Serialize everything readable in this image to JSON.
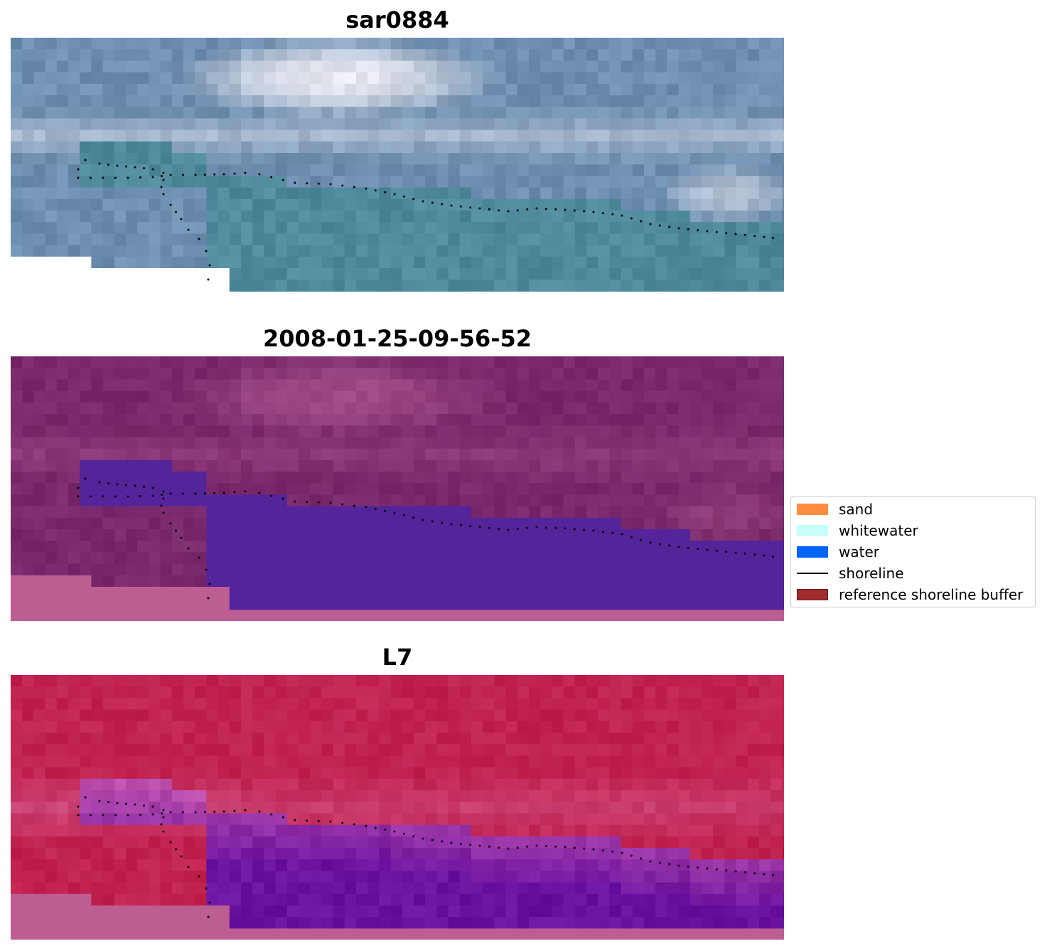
{
  "panels": [
    {
      "title": "sar0884",
      "kind": "rgb"
    },
    {
      "title": "2008-01-25-09-56-52",
      "kind": "classified"
    },
    {
      "title": "L7",
      "kind": "nir"
    }
  ],
  "legend": {
    "items": [
      {
        "label": "sand",
        "color": "#ff8c3f",
        "type": "patch"
      },
      {
        "label": "whitewater",
        "color": "#c8fffb",
        "type": "patch"
      },
      {
        "label": "water",
        "color": "#0064ff",
        "type": "patch"
      },
      {
        "label": "shoreline",
        "color": "#000000",
        "type": "line"
      },
      {
        "label": "reference shoreline buffer",
        "color": "#a12b2b",
        "type": "patch"
      }
    ]
  },
  "colors": {
    "rgb_sky": "#6f8fb0",
    "rgb_cloud": "#e8e8f0",
    "rgb_sea": "#4f8a9c",
    "class_land": "#8a3a7a",
    "class_water": "#54249a",
    "class_nodata": "#bc5e92",
    "nir_land": "#c01f4b",
    "nir_water": "#6a12a0",
    "nir_nodata": "#bc5e92"
  }
}
